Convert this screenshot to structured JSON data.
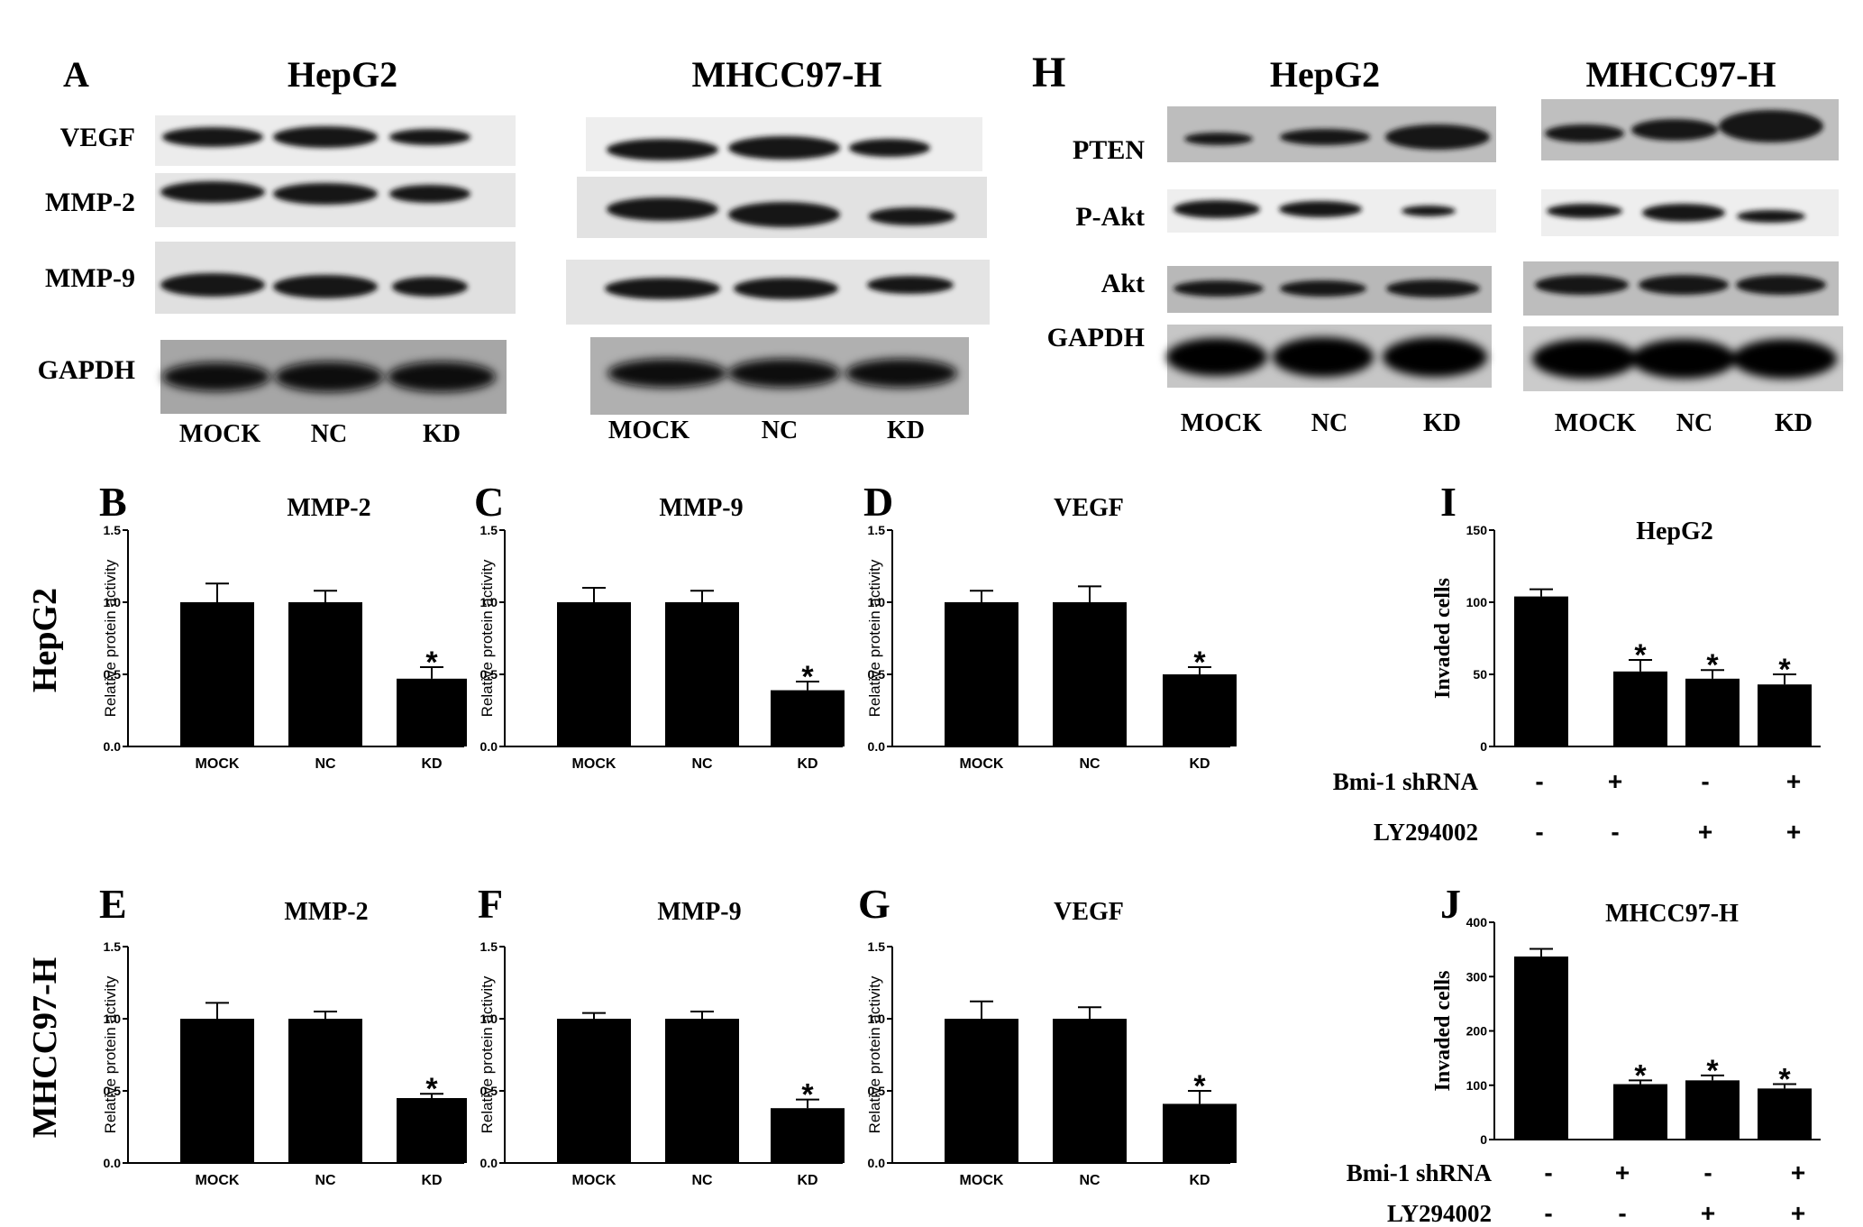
{
  "panel_a": {
    "letter": "A",
    "groups": [
      {
        "title": "HepG2",
        "lanes": [
          "MOCK",
          "NC",
          "KD"
        ]
      },
      {
        "title": "MHCC97-H",
        "lanes": [
          "MOCK",
          "NC",
          "KD"
        ]
      }
    ],
    "rows": [
      "VEGF",
      "MMP-2",
      "MMP-9",
      "GAPDH"
    ]
  },
  "panel_h": {
    "letter": "H",
    "groups": [
      {
        "title": "HepG2",
        "lanes": [
          "MOCK",
          "NC",
          "KD"
        ]
      },
      {
        "title": "MHCC97-H",
        "lanes": [
          "MOCK",
          "NC",
          "KD"
        ]
      }
    ],
    "rows": [
      "PTEN",
      "P-Akt",
      "Akt",
      "GAPDH"
    ]
  },
  "row_labels": [
    "HepG2",
    "MHCC97-H"
  ],
  "colors": {
    "bar": "#000000",
    "background": "#ffffff"
  },
  "chart_data": [
    {
      "panel": "B",
      "type": "bar",
      "title": "MMP-2",
      "ylabel": "Relative protein activity",
      "categories": [
        "MOCK",
        "NC",
        "KD"
      ],
      "values": [
        1.0,
        1.0,
        0.47
      ],
      "errors": [
        0.13,
        0.08,
        0.08
      ],
      "significance": [
        "",
        "",
        "*"
      ],
      "ylim": [
        0,
        1.5
      ],
      "yticks": [
        "0.0",
        "0.5",
        "1.0",
        "1.5"
      ]
    },
    {
      "panel": "C",
      "type": "bar",
      "title": "MMP-9",
      "ylabel": "Relative protein activity",
      "categories": [
        "MOCK",
        "NC",
        "KD"
      ],
      "values": [
        1.0,
        1.0,
        0.39
      ],
      "errors": [
        0.1,
        0.08,
        0.06
      ],
      "significance": [
        "",
        "",
        "*"
      ],
      "ylim": [
        0,
        1.5
      ],
      "yticks": [
        "0.0",
        "0.5",
        "1.0",
        "1.5"
      ]
    },
    {
      "panel": "D",
      "type": "bar",
      "title": "VEGF",
      "ylabel": "Relative protein activity",
      "categories": [
        "MOCK",
        "NC",
        "KD"
      ],
      "values": [
        1.0,
        1.0,
        0.5
      ],
      "errors": [
        0.08,
        0.11,
        0.05
      ],
      "significance": [
        "",
        "",
        "*"
      ],
      "ylim": [
        0,
        1.5
      ],
      "yticks": [
        "0.0",
        "0.5",
        "1.0",
        "1.5"
      ]
    },
    {
      "panel": "E",
      "type": "bar",
      "title": "MMP-2",
      "ylabel": "Relative protein activity",
      "categories": [
        "MOCK",
        "NC",
        "KD"
      ],
      "values": [
        1.0,
        1.0,
        0.45
      ],
      "errors": [
        0.11,
        0.05,
        0.03
      ],
      "significance": [
        "",
        "",
        "*"
      ],
      "ylim": [
        0,
        1.5
      ],
      "yticks": [
        "0.0",
        "0.5",
        "1.0",
        "1.5"
      ]
    },
    {
      "panel": "F",
      "type": "bar",
      "title": "MMP-9",
      "ylabel": "Relative protein activity",
      "categories": [
        "MOCK",
        "NC",
        "KD"
      ],
      "values": [
        1.0,
        1.0,
        0.38
      ],
      "errors": [
        0.04,
        0.05,
        0.06
      ],
      "significance": [
        "",
        "",
        "*"
      ],
      "ylim": [
        0,
        1.5
      ],
      "yticks": [
        "0.0",
        "0.5",
        "1.0",
        "1.5"
      ]
    },
    {
      "panel": "G",
      "type": "bar",
      "title": "VEGF",
      "ylabel": "Relative protein activity",
      "categories": [
        "MOCK",
        "NC",
        "KD"
      ],
      "values": [
        1.0,
        1.0,
        0.41
      ],
      "errors": [
        0.12,
        0.08,
        0.09
      ],
      "significance": [
        "",
        "",
        "*"
      ],
      "ylim": [
        0,
        1.5
      ],
      "yticks": [
        "0.0",
        "0.5",
        "1.0",
        "1.5"
      ]
    },
    {
      "panel": "I",
      "type": "bar",
      "title": "HepG2",
      "ylabel": "Invaded cells",
      "values": [
        104,
        52,
        47,
        43
      ],
      "errors": [
        5,
        8,
        6,
        7
      ],
      "significance": [
        "",
        "*",
        "*",
        "*"
      ],
      "ylim": [
        0,
        150
      ],
      "yticks": [
        "0",
        "50",
        "100",
        "150"
      ],
      "conditions": [
        {
          "label": "Bmi-1 shRNA",
          "marks": [
            "-",
            "+",
            "-",
            "+"
          ]
        },
        {
          "label": "LY294002",
          "marks": [
            "-",
            "-",
            "+",
            "+"
          ]
        }
      ]
    },
    {
      "panel": "J",
      "type": "bar",
      "title": "MHCC97-H",
      "ylabel": "Invaded cells",
      "values": [
        337,
        102,
        109,
        94
      ],
      "errors": [
        14,
        7,
        9,
        8
      ],
      "significance": [
        "",
        "*",
        "*",
        "*"
      ],
      "ylim": [
        0,
        400
      ],
      "yticks": [
        "0",
        "100",
        "200",
        "300",
        "400"
      ],
      "conditions": [
        {
          "label": "Bmi-1 shRNA",
          "marks": [
            "-",
            "+",
            "-",
            "+"
          ]
        },
        {
          "label": "LY294002",
          "marks": [
            "-",
            "-",
            "+",
            "+"
          ]
        }
      ]
    }
  ]
}
